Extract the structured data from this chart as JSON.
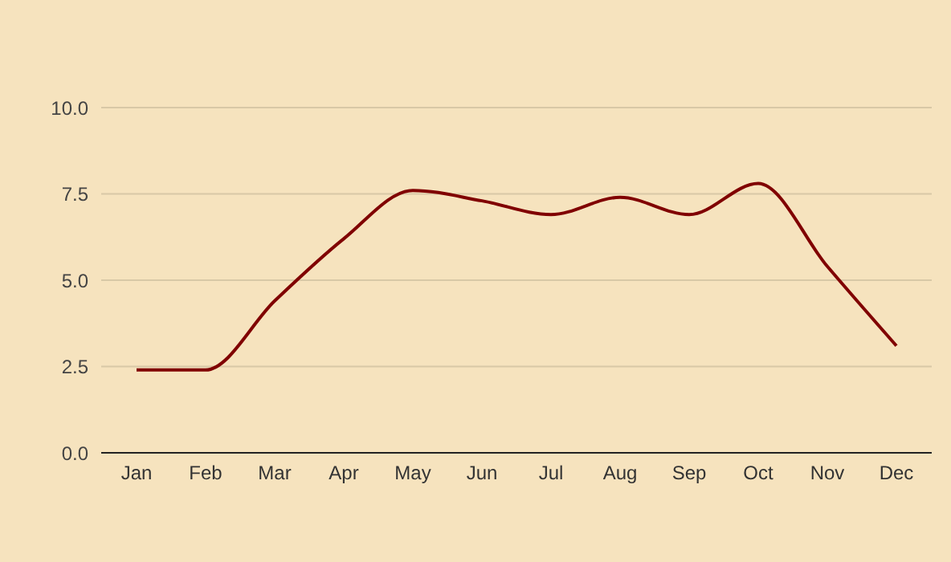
{
  "chart_data": {
    "type": "line",
    "categories": [
      "Jan",
      "Feb",
      "Mar",
      "Apr",
      "May",
      "Jun",
      "Jul",
      "Aug",
      "Sep",
      "Oct",
      "Nov",
      "Dec"
    ],
    "series": [
      {
        "color": "#800000",
        "values": [
          2.4,
          2.4,
          4.4,
          6.2,
          7.6,
          7.3,
          6.9,
          7.4,
          6.9,
          7.8,
          5.4,
          3.1
        ]
      }
    ],
    "ylim": [
      0,
      10
    ],
    "yticks": [
      {
        "value": 0,
        "label": "0.0"
      },
      {
        "value": 2.5,
        "label": "2.5"
      },
      {
        "value": 5,
        "label": "5.0"
      },
      {
        "value": 7.5,
        "label": "7.5"
      },
      {
        "value": 10,
        "label": "10.0"
      }
    ],
    "grid": "y",
    "marker": "none",
    "line_style": "solid"
  }
}
